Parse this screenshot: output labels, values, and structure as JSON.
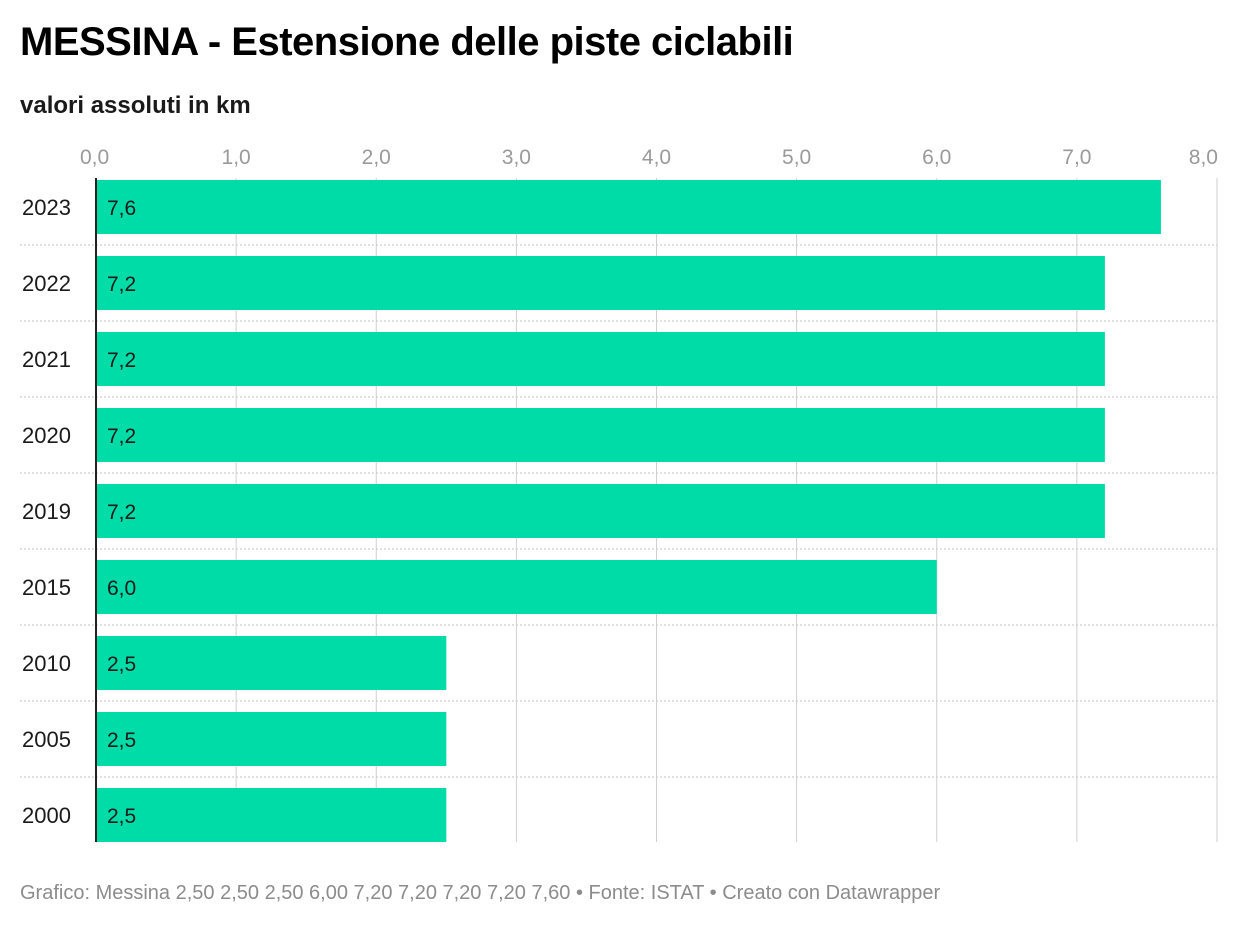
{
  "title": "MESSINA - Estensione delle piste ciclabili",
  "subtitle": "valori assoluti in km",
  "colors": {
    "bar": "#00dca8",
    "grid": "#cfcfcf",
    "axis": "#222222"
  },
  "chart_data": {
    "type": "bar",
    "orientation": "horizontal",
    "categories": [
      "2023",
      "2022",
      "2021",
      "2020",
      "2019",
      "2015",
      "2010",
      "2005",
      "2000"
    ],
    "values": [
      7.6,
      7.2,
      7.2,
      7.2,
      7.2,
      6.0,
      2.5,
      2.5,
      2.5
    ],
    "value_labels": [
      "7,6",
      "7,2",
      "7,2",
      "7,2",
      "7,2",
      "6,0",
      "2,5",
      "2,5",
      "2,5"
    ],
    "xlim": [
      0,
      8
    ],
    "ticks": [
      0,
      1,
      2,
      3,
      4,
      5,
      6,
      7,
      8
    ],
    "tick_labels": [
      "0,0",
      "1,0",
      "2,0",
      "3,0",
      "4,0",
      "5,0",
      "6,0",
      "7,0",
      "8,0"
    ],
    "grid": true,
    "xlabel": "",
    "ylabel": ""
  },
  "footer": {
    "text": "Grafico: Messina 2,50 2,50 2,50 6,00 7,20 7,20 7,20 7,20 7,60 • Fonte: ISTAT • Creato con Datawrapper"
  }
}
